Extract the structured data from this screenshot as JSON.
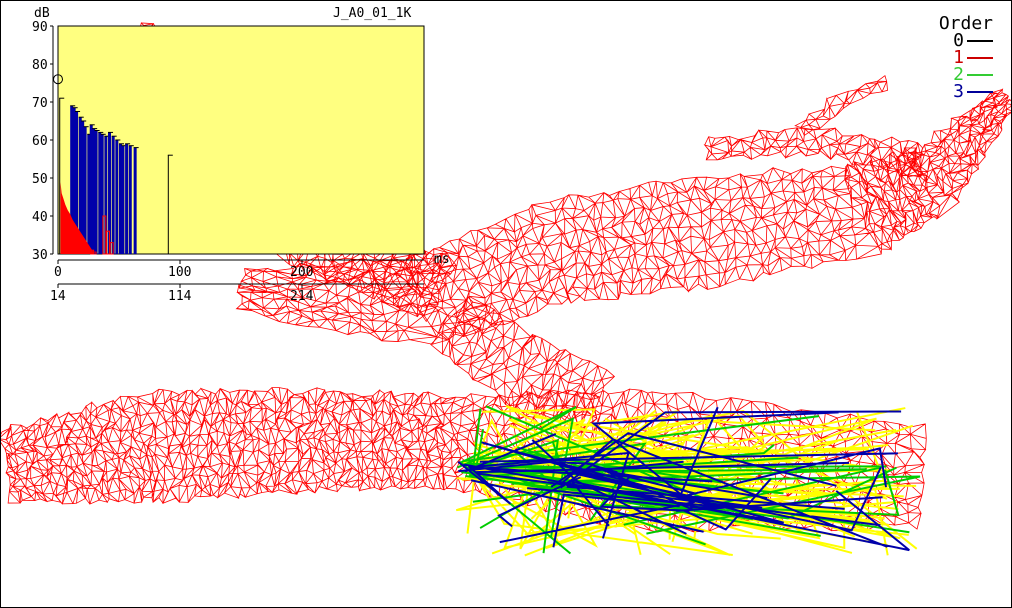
{
  "view": {
    "mesh_color": "#ff0000",
    "ray_colors": {
      "order_2": "#00cc00",
      "order_3": "#0000aa",
      "order_4": "#ffff00"
    }
  },
  "legend": {
    "title": "Order",
    "items": [
      {
        "label": "0",
        "color": "#000000"
      },
      {
        "label": "1",
        "color": "#cc0000"
      },
      {
        "label": "2",
        "color": "#33cc33"
      },
      {
        "label": "3",
        "color": "#000099"
      }
    ]
  },
  "chart_data": {
    "type": "bar",
    "title": "J_A0_01_1K",
    "ylabel": "dB",
    "xlabel": "ms",
    "xlim": [
      0,
      300
    ],
    "ylim": [
      30,
      90
    ],
    "grid": false,
    "background": "#ffff80",
    "yticks": [
      "30",
      "40",
      "50",
      "60",
      "70",
      "80",
      "90"
    ],
    "xticks": [
      "0",
      "100",
      "200"
    ],
    "xticks_secondary": [
      "14",
      "114",
      "214"
    ],
    "direct_marker": {
      "x": 0,
      "y": 76
    },
    "series": [
      {
        "order": 0,
        "color": "#000000",
        "points": [
          [
            1,
            71
          ],
          [
            90,
            56
          ]
        ]
      },
      {
        "order": 3,
        "color": "#0000aa",
        "points": [
          [
            10,
            69
          ],
          [
            12,
            68.5
          ],
          [
            14,
            67.5
          ],
          [
            17,
            66
          ],
          [
            19,
            65
          ],
          [
            21,
            63.5
          ],
          [
            24,
            61.5
          ],
          [
            26,
            64
          ],
          [
            28,
            63
          ],
          [
            30,
            62.5
          ],
          [
            33,
            62
          ],
          [
            35,
            61.5
          ],
          [
            38,
            61
          ],
          [
            41,
            62
          ],
          [
            44,
            61
          ],
          [
            47,
            60
          ],
          [
            50,
            59
          ],
          [
            52,
            58.5
          ],
          [
            55,
            59
          ],
          [
            58,
            58.5
          ],
          [
            62,
            58
          ]
        ]
      },
      {
        "order": 1,
        "color": "#ff0000",
        "points": [
          [
            2,
            49
          ],
          [
            3,
            46
          ],
          [
            4,
            45
          ],
          [
            5,
            44
          ],
          [
            6,
            43
          ],
          [
            8,
            41.5
          ],
          [
            10,
            40.5
          ],
          [
            12,
            39
          ],
          [
            14,
            38
          ],
          [
            16,
            37
          ],
          [
            18,
            36
          ],
          [
            20,
            35
          ],
          [
            22,
            34
          ],
          [
            24,
            33
          ],
          [
            26,
            32
          ],
          [
            28,
            31
          ],
          [
            30,
            30.5
          ],
          [
            38,
            40
          ],
          [
            41,
            36
          ],
          [
            44,
            33
          ]
        ]
      }
    ]
  }
}
